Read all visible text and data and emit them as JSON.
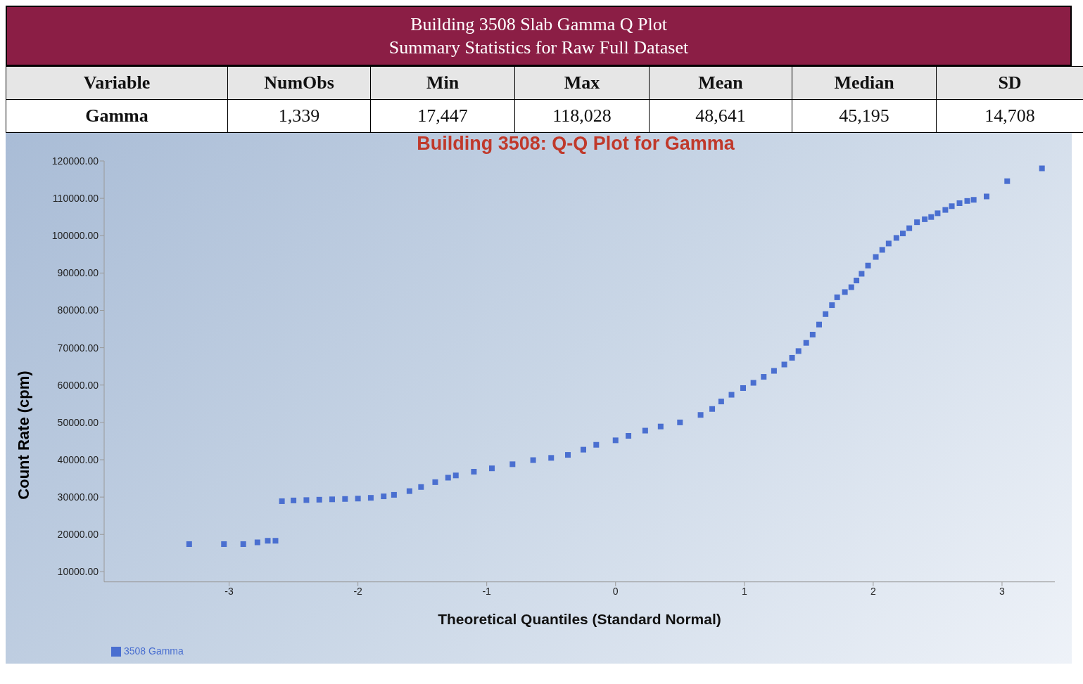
{
  "chart_data": {
    "type": "scatter",
    "title": "Building 3508: Q-Q Plot for Gamma",
    "xlabel": "Theoretical Quantiles (Standard Normal)",
    "ylabel": "Count Rate (cpm)",
    "annotations": [
      "Building 3508 Slab Gamma Q Plot",
      "Summary Statistics for Raw Full Dataset",
      "Variable",
      "NumObs",
      "Min",
      "Max",
      "Mean",
      "Median",
      "SD",
      "Gamma",
      "1,339",
      "17,447",
      "118,028",
      "48,641",
      "45,195",
      "14,708"
    ],
    "x": [
      -3.31,
      -3.04,
      -2.89,
      -2.78,
      -2.7,
      -2.64,
      -2.59,
      -2.5,
      -2.4,
      -2.3,
      -2.2,
      -2.1,
      -2.0,
      -1.9,
      -1.8,
      -1.72,
      -1.6,
      -1.51,
      -1.4,
      -1.3,
      -1.24,
      -1.1,
      -0.96,
      -0.8,
      -0.64,
      -0.5,
      -0.37,
      -0.25,
      -0.15,
      0,
      0.1,
      0.23,
      0.35,
      0.5,
      0.66,
      0.75,
      0.82,
      0.9,
      0.99,
      1.07,
      1.15,
      1.23,
      1.31,
      1.37,
      1.42,
      1.48,
      1.53,
      1.58,
      1.63,
      1.68,
      1.72,
      1.78,
      1.83,
      1.87,
      1.91,
      1.96,
      2.02,
      2.07,
      2.12,
      2.18,
      2.23,
      2.28,
      2.34,
      2.4,
      2.45,
      2.5,
      2.56,
      2.61,
      2.67,
      2.73,
      2.78,
      2.88,
      3.04,
      3.31
    ],
    "series": [
      {
        "name": "3508 Gamma",
        "color": "#4a6fd0",
        "values": [
          17400,
          17400,
          17400,
          17900,
          18300,
          18300,
          28900,
          29100,
          29200,
          29300,
          29400,
          29500,
          29600,
          29800,
          30200,
          30600,
          31600,
          32700,
          34000,
          35200,
          35800,
          36800,
          37700,
          38800,
          39900,
          40500,
          41300,
          42700,
          44000,
          45200,
          46400,
          47800,
          48900,
          50000,
          52000,
          53600,
          55600,
          57400,
          59200,
          60600,
          62200,
          63800,
          65500,
          67300,
          69100,
          71300,
          73500,
          76200,
          79000,
          81400,
          83500,
          84900,
          86200,
          88000,
          89800,
          92000,
          94300,
          96200,
          97900,
          99400,
          100600,
          102000,
          103600,
          104400,
          105000,
          106000,
          106900,
          107900,
          108700,
          109300,
          109600,
          110500,
          114600,
          118000
        ]
      }
    ],
    "xlim": [
      -3.97,
      3.41
    ],
    "ylim": [
      7300,
      120000
    ],
    "xticks": [
      -3,
      -2,
      -1,
      0,
      1,
      2,
      3
    ],
    "yticks": [
      {
        "value": 10000,
        "label": "10000.00"
      },
      {
        "value": 20000,
        "label": "20000.00"
      },
      {
        "value": 30000,
        "label": "30000.00"
      },
      {
        "value": 40000,
        "label": "40000.00"
      },
      {
        "value": 50000,
        "label": "50000.00"
      },
      {
        "value": 60000,
        "label": "60000.00"
      },
      {
        "value": 70000,
        "label": "70000.00"
      },
      {
        "value": 80000,
        "label": "80000.00"
      },
      {
        "value": 90000,
        "label": "90000.00"
      },
      {
        "value": 100000,
        "label": "100000.00"
      },
      {
        "value": 110000,
        "label": "110000.00"
      },
      {
        "value": 120000,
        "label": "120000.00"
      }
    ],
    "legend": "bottom left",
    "marker": "square"
  }
}
